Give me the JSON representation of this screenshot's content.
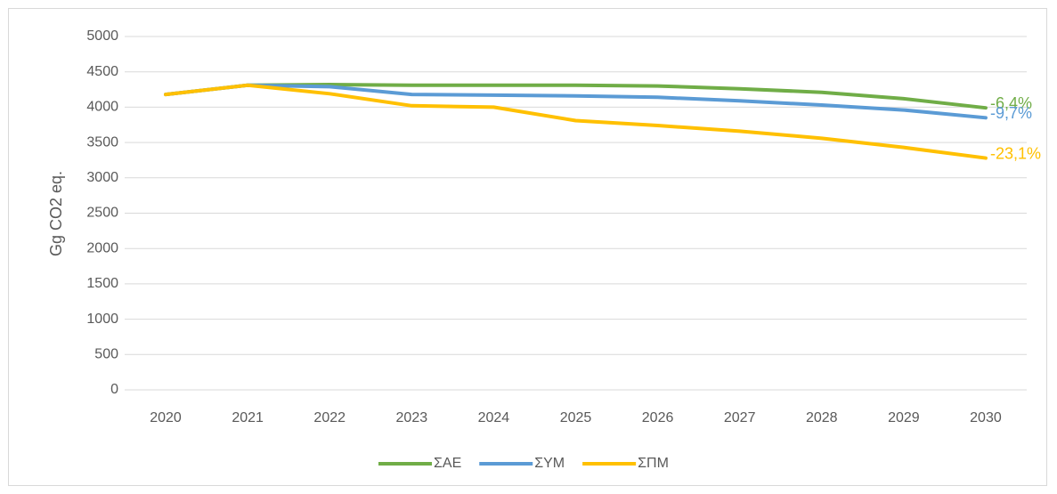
{
  "chart_data": {
    "type": "line",
    "y_label": "Gg CO2 eq.",
    "categories": [
      "2020",
      "2021",
      "2022",
      "2023",
      "2024",
      "2025",
      "2026",
      "2027",
      "2028",
      "2029",
      "2030"
    ],
    "series": [
      {
        "name": "ΣΑΕ",
        "color": "#70ad47",
        "values": [
          4180,
          4310,
          4320,
          4310,
          4310,
          4310,
          4300,
          4260,
          4210,
          4120,
          3990
        ],
        "end_label": "-6,4%"
      },
      {
        "name": "ΣΥΜ",
        "color": "#5b9bd5",
        "values": [
          4180,
          4310,
          4290,
          4180,
          4170,
          4160,
          4140,
          4090,
          4030,
          3960,
          3850
        ],
        "end_label": "-9,7%"
      },
      {
        "name": "ΣΠΜ",
        "color": "#ffc000",
        "values": [
          4180,
          4310,
          4190,
          4020,
          4000,
          3810,
          3740,
          3660,
          3560,
          3430,
          3280
        ],
        "end_label": "-23,1%"
      }
    ],
    "ylim": [
      0,
      5000
    ],
    "yticks": [
      0,
      500,
      1000,
      1500,
      2000,
      2500,
      3000,
      3500,
      4000,
      4500,
      5000
    ],
    "grid": true,
    "legend": "bottom"
  }
}
